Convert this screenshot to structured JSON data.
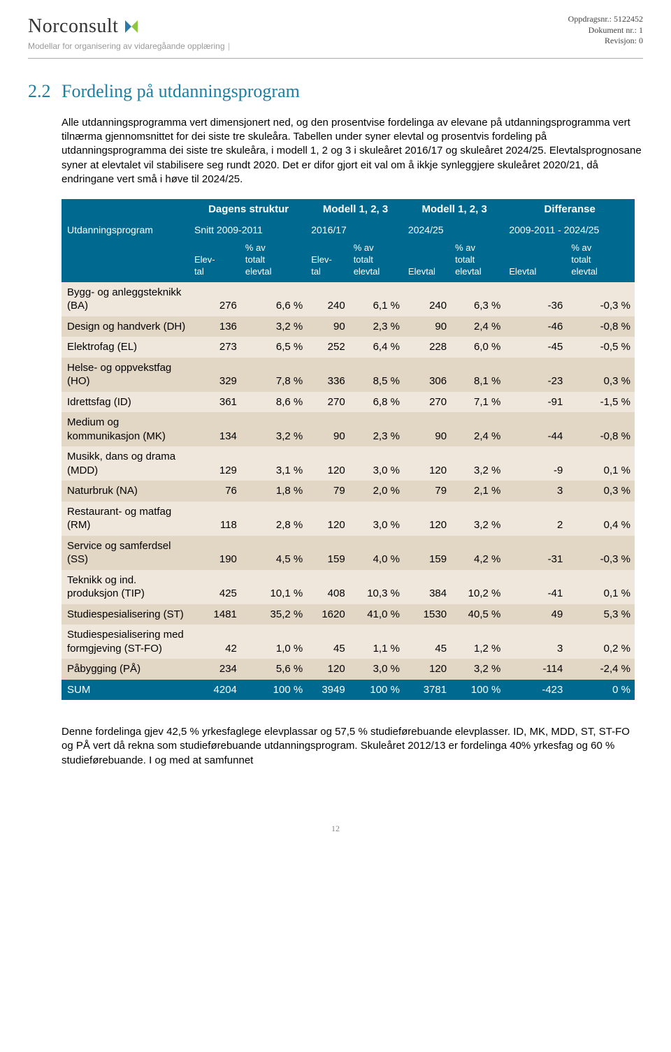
{
  "header": {
    "logo_text": "Norconsult",
    "subtitle": "Modellar for organisering av vidaregåande opplæring",
    "meta1": "Oppdragsnr.: 5122452",
    "meta2": "Dokument nr.: 1",
    "meta3": "Revisjon: 0"
  },
  "section": {
    "number": "2.2",
    "title": "Fordeling på utdanningsprogram"
  },
  "paragraph": "Alle utdanningsprogramma vert dimensjonert ned, og den prosentvise fordelinga av elevane på utdanningsprogramma vert tilnærma gjennomsnittet for dei siste tre skuleåra. Tabellen under syner elevtal og prosentvis fordeling på utdanningsprogramma dei siste tre skuleåra, i modell 1, 2 og 3 i skuleåret 2016/17 og skuleåret 2024/25. Elevtalsprognosane syner at elevtalet vil stabilisere seg rundt 2020. Det er difor gjort eit val om å ikkje synleggjere skuleåret 2020/21, då endringane vert små i høve til 2024/25.",
  "table": {
    "group_headers": [
      "Dagens struktur",
      "Modell 1, 2, 3",
      "Modell 1, 2, 3",
      "Differanse"
    ],
    "row_header": "Utdanningsprogram",
    "sub_headers": [
      "Snitt 2009-2011",
      "2016/17",
      "2024/25",
      "2009-2011 - 2024/25"
    ],
    "col_pair_labels": {
      "a": "Elev-\ntal",
      "b": "% av\ntotalt\nelevtal",
      "a2": "Elevtal"
    },
    "rows": [
      {
        "label": "Bygg- og anleggsteknikk (BA)",
        "v": [
          276,
          "6,6 %",
          240,
          "6,1 %",
          240,
          "6,3 %",
          -36,
          "-0,3 %"
        ]
      },
      {
        "label": "Design og handverk (DH)",
        "v": [
          136,
          "3,2 %",
          90,
          "2,3 %",
          90,
          "2,4 %",
          -46,
          "-0,8 %"
        ]
      },
      {
        "label": "Elektrofag (EL)",
        "v": [
          273,
          "6,5 %",
          252,
          "6,4 %",
          228,
          "6,0 %",
          -45,
          "-0,5 %"
        ]
      },
      {
        "label": "Helse- og oppvekstfag (HO)",
        "v": [
          329,
          "7,8 %",
          336,
          "8,5 %",
          306,
          "8,1 %",
          -23,
          "0,3 %"
        ]
      },
      {
        "label": "Idrettsfag (ID)",
        "v": [
          361,
          "8,6 %",
          270,
          "6,8 %",
          270,
          "7,1 %",
          -91,
          "-1,5 %"
        ]
      },
      {
        "label": "Medium og kommunikasjon (MK)",
        "v": [
          134,
          "3,2 %",
          90,
          "2,3 %",
          90,
          "2,4 %",
          -44,
          "-0,8 %"
        ]
      },
      {
        "label": "Musikk, dans og drama (MDD)",
        "v": [
          129,
          "3,1 %",
          120,
          "3,0 %",
          120,
          "3,2 %",
          -9,
          "0,1 %"
        ]
      },
      {
        "label": "Naturbruk (NA)",
        "v": [
          76,
          "1,8 %",
          79,
          "2,0 %",
          79,
          "2,1 %",
          3,
          "0,3 %"
        ]
      },
      {
        "label": "Restaurant- og matfag (RM)",
        "v": [
          118,
          "2,8 %",
          120,
          "3,0 %",
          120,
          "3,2 %",
          2,
          "0,4 %"
        ]
      },
      {
        "label": "Service og samferdsel (SS)",
        "v": [
          190,
          "4,5 %",
          159,
          "4,0 %",
          159,
          "4,2 %",
          -31,
          "-0,3 %"
        ]
      },
      {
        "label": "Teknikk og ind. produksjon (TIP)",
        "v": [
          425,
          "10,1 %",
          408,
          "10,3 %",
          384,
          "10,2 %",
          -41,
          "0,1 %"
        ]
      },
      {
        "label": "Studiespesialisering (ST)",
        "v": [
          1481,
          "35,2 %",
          1620,
          "41,0 %",
          1530,
          "40,5 %",
          49,
          "5,3 %"
        ]
      },
      {
        "label": "Studiespesialisering med formgjeving (ST-FO)",
        "v": [
          42,
          "1,0 %",
          45,
          "1,1 %",
          45,
          "1,2 %",
          3,
          "0,2 %"
        ]
      },
      {
        "label": "Påbygging (PÅ)",
        "v": [
          234,
          "5,6 %",
          120,
          "3,0 %",
          120,
          "3,2 %",
          -114,
          "-2,4 %"
        ]
      }
    ],
    "sum": {
      "label": "SUM",
      "v": [
        4204,
        "100 %",
        3949,
        "100 %",
        3781,
        "100 %",
        -423,
        "0 %"
      ]
    }
  },
  "footer_text": "Denne fordelinga gjev 42,5 % yrkesfaglege elevplassar og 57,5 % studieførebuande elevplasser. ID, MK, MDD, ST, ST-FO og PÅ vert då rekna som studieførebuande utdanningsprogram. Skuleåret 2012/13 er fordelinga 40% yrkesfag og 60 % studieførebuande. I og med at samfunnet",
  "page_number": "12",
  "colors": {
    "accent": "#1a7fa3",
    "header_bg": "#00698f",
    "band0": "#efe7dc",
    "band1": "#e2d6c5"
  }
}
